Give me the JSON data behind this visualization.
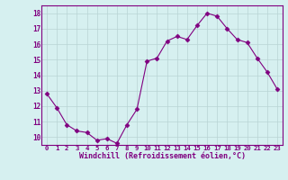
{
  "x": [
    0,
    1,
    2,
    3,
    4,
    5,
    6,
    7,
    8,
    9,
    10,
    11,
    12,
    13,
    14,
    15,
    16,
    17,
    18,
    19,
    20,
    21,
    22,
    23
  ],
  "y": [
    12.8,
    11.9,
    10.8,
    10.4,
    10.3,
    9.8,
    9.9,
    9.6,
    10.8,
    11.8,
    14.9,
    15.1,
    16.2,
    16.5,
    16.3,
    17.2,
    18.0,
    17.8,
    17.0,
    16.3,
    16.1,
    15.1,
    14.2,
    13.1
  ],
  "xlabel": "Windchill (Refroidissement éolien,°C)",
  "ylim": [
    9.5,
    18.5
  ],
  "xlim": [
    -0.5,
    23.5
  ],
  "yticks": [
    10,
    11,
    12,
    13,
    14,
    15,
    16,
    17,
    18
  ],
  "xticks": [
    0,
    1,
    2,
    3,
    4,
    5,
    6,
    7,
    8,
    9,
    10,
    11,
    12,
    13,
    14,
    15,
    16,
    17,
    18,
    19,
    20,
    21,
    22,
    23
  ],
  "line_color": "#800080",
  "marker": "D",
  "marker_size": 2.5,
  "bg_color": "#d6f0f0",
  "grid_color": "#b8d4d4",
  "tick_color": "#800080",
  "border_color": "#800080",
  "xlabel_color": "#800080"
}
